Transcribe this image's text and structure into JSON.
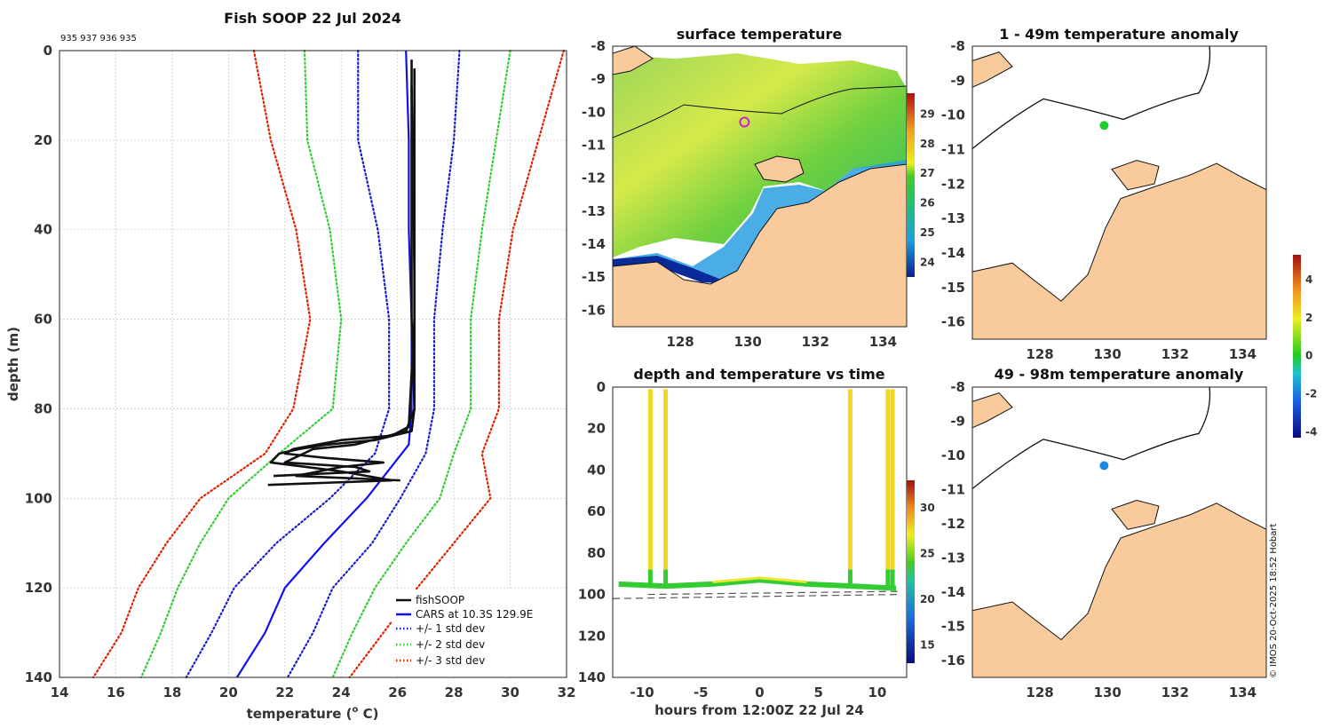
{
  "colors": {
    "land": "#f9cb9c",
    "profile": "#111111",
    "cars": "#1010ee",
    "std1": "#1a1acc",
    "std2": "#33cc33",
    "std3": "#dd2200"
  },
  "credit": "© IMOS 20-Oct-2025 18:52 Hobart",
  "chart_data": [
    {
      "id": "profile",
      "type": "line",
      "title": "Fish SOOP 22 Jul 2024",
      "subtitle": "935 937 936 935",
      "xlabel": "temperature (",
      "xlabel_sup": "o",
      "xlabel_tail": " C)",
      "ylabel": "depth (m)",
      "xlim": [
        14,
        32
      ],
      "ylim": [
        0,
        140
      ],
      "xticks": [
        "14",
        "16",
        "18",
        "20",
        "22",
        "24",
        "26",
        "28",
        "30",
        "32"
      ],
      "yticks": [
        "0",
        "20",
        "40",
        "60",
        "80",
        "100",
        "120",
        "140"
      ],
      "legend_position": "bottom-right",
      "legend": [
        "fishSOOP",
        "CARS at 10.3S 129.9E",
        "+/- 1 std dev",
        "+/- 2 std dev",
        "+/- 3 std dev"
      ],
      "series": [
        {
          "name": "CARS at 10.3S 129.9E",
          "style": "solid",
          "depth": [
            0,
            20,
            40,
            60,
            80,
            88,
            100,
            110,
            120,
            130,
            140
          ],
          "temp": [
            26.3,
            26.4,
            26.4,
            26.5,
            26.5,
            26.4,
            24.9,
            23.4,
            22.0,
            21.3,
            20.3
          ]
        },
        {
          "name": "+1 std dev",
          "style": "dotted",
          "depth": [
            0,
            20,
            40,
            60,
            80,
            90,
            100,
            110,
            120,
            130,
            140
          ],
          "temp": [
            28.2,
            28.0,
            27.6,
            27.3,
            27.3,
            27.0,
            26.1,
            25.1,
            23.7,
            23.0,
            22.1
          ]
        },
        {
          "name": "-1 std dev",
          "style": "dotted",
          "depth": [
            0,
            20,
            40,
            60,
            80,
            90,
            100,
            110,
            120,
            130,
            140
          ],
          "temp": [
            24.6,
            24.6,
            25.3,
            25.7,
            25.7,
            25.2,
            23.6,
            21.7,
            20.2,
            19.4,
            18.5
          ]
        },
        {
          "name": "+2 std dev",
          "style": "dotted",
          "depth": [
            0,
            20,
            40,
            60,
            80,
            90,
            100,
            110,
            120,
            130,
            140
          ],
          "temp": [
            30.0,
            29.5,
            29.0,
            28.6,
            28.6,
            28.0,
            27.5,
            26.3,
            25.2,
            24.4,
            23.7
          ]
        },
        {
          "name": "-2 std dev",
          "style": "dotted",
          "depth": [
            0,
            20,
            40,
            60,
            80,
            90,
            100,
            110,
            120,
            130,
            140
          ],
          "temp": [
            22.7,
            22.8,
            23.6,
            24.0,
            23.7,
            21.8,
            20.0,
            19.0,
            18.2,
            17.6,
            16.9
          ]
        },
        {
          "name": "+3 std dev",
          "style": "dotted",
          "depth": [
            0,
            20,
            40,
            60,
            80,
            90,
            100,
            110,
            120,
            130,
            140
          ],
          "temp": [
            31.9,
            31.0,
            30.1,
            29.6,
            29.6,
            29.0,
            29.3,
            28.0,
            26.7,
            25.5,
            24.3
          ]
        },
        {
          "name": "-3 std dev",
          "style": "dotted",
          "depth": [
            0,
            20,
            40,
            60,
            80,
            90,
            100,
            110,
            120,
            130,
            140
          ],
          "temp": [
            20.9,
            21.5,
            22.4,
            22.9,
            22.3,
            21.3,
            19.0,
            17.8,
            16.8,
            16.2,
            15.2
          ]
        },
        {
          "name": "fishSOOP",
          "style": "solid",
          "depth": [
            2,
            20,
            40,
            60,
            80,
            85,
            87,
            88,
            89,
            90,
            92,
            94,
            96,
            97
          ],
          "temp": [
            26.5,
            26.5,
            26.5,
            26.5,
            26.6,
            26.5,
            25.2,
            23.5,
            22.5,
            21.8,
            21.5,
            24.0,
            25.8,
            21.4
          ]
        },
        {
          "name": "fishSOOP",
          "style": "solid",
          "depth": [
            4,
            30,
            60,
            84,
            86,
            87,
            89,
            90,
            91,
            92,
            93,
            95,
            96
          ],
          "temp": [
            26.6,
            26.6,
            26.6,
            26.4,
            25.8,
            24.0,
            22.3,
            22.0,
            23.5,
            25.5,
            24.0,
            22.4,
            26.1
          ]
        },
        {
          "name": "fishSOOP",
          "style": "solid",
          "depth": [
            8,
            50,
            80,
            85,
            88,
            89,
            92,
            93,
            94,
            95
          ],
          "temp": [
            26.5,
            26.6,
            26.6,
            26.3,
            24.5,
            23.0,
            22.0,
            24.5,
            25.0,
            21.6
          ]
        }
      ]
    },
    {
      "id": "sst",
      "type": "heatmap",
      "title": "surface temperature",
      "xlim": [
        126,
        134.7
      ],
      "ylim": [
        -16.5,
        -8
      ],
      "xticks": [
        "128",
        "130",
        "132",
        "134"
      ],
      "yticks": [
        "-8",
        "-9",
        "-10",
        "-11",
        "-12",
        "-13",
        "-14",
        "-15",
        "-16"
      ],
      "colorbar": {
        "range": [
          23.5,
          29.7
        ],
        "ticks": [
          "24",
          "25",
          "26",
          "27",
          "28",
          "29"
        ]
      },
      "marker": {
        "lon": 129.9,
        "lat": -10.3
      }
    },
    {
      "id": "depth_time",
      "type": "scatter",
      "title": "depth and temperature vs time",
      "xlabel": "hours from 12:00Z 22 Jul 24",
      "xlim": [
        -12.5,
        12.5
      ],
      "ylim": [
        0,
        140
      ],
      "xticks": [
        "-10",
        "-5",
        "0",
        "5",
        "10"
      ],
      "yticks": [
        "0",
        "20",
        "40",
        "60",
        "80",
        "100",
        "120",
        "140"
      ],
      "colorbar": {
        "range": [
          13,
          33
        ],
        "ticks": [
          "15",
          "20",
          "25",
          "30"
        ]
      },
      "bottom_lines": [
        {
          "x": [
            -12.5,
            12.0
          ],
          "y": [
            102,
            100
          ]
        },
        {
          "x": [
            -9.5,
            12.0
          ],
          "y": [
            100,
            98.5
          ]
        }
      ],
      "casts": [
        {
          "hour": -9.3
        },
        {
          "hour": -8.0
        },
        {
          "hour": 7.7
        },
        {
          "hour": 10.9
        },
        {
          "hour": 11.3
        }
      ],
      "bottom_track": [
        {
          "hour": -12.0,
          "depth": 95
        },
        {
          "hour": -8,
          "depth": 96
        },
        {
          "hour": -4,
          "depth": 95
        },
        {
          "hour": 0,
          "depth": 93
        },
        {
          "hour": 4,
          "depth": 95
        },
        {
          "hour": 8,
          "depth": 96
        },
        {
          "hour": 11.6,
          "depth": 97
        }
      ]
    },
    {
      "id": "anom_1_49",
      "type": "scatter",
      "title": "1 - 49m temperature anomaly",
      "xlim": [
        126,
        134.7
      ],
      "ylim": [
        -16.5,
        -8
      ],
      "xticks": [
        "128",
        "130",
        "132",
        "134"
      ],
      "yticks": [
        "-8",
        "-9",
        "-10",
        "-11",
        "-12",
        "-13",
        "-14",
        "-15",
        "-16"
      ],
      "points": [
        {
          "lon": 129.9,
          "lat": -10.3,
          "anomaly": 0.2
        }
      ]
    },
    {
      "id": "anom_49_98",
      "type": "scatter",
      "title": "49 - 98m temperature anomaly",
      "xlim": [
        126,
        134.7
      ],
      "ylim": [
        -16.5,
        -8
      ],
      "xticks": [
        "128",
        "130",
        "132",
        "134"
      ],
      "yticks": [
        "-8",
        "-9",
        "-10",
        "-11",
        "-12",
        "-13",
        "-14",
        "-15",
        "-16"
      ],
      "points": [
        {
          "lon": 129.9,
          "lat": -10.3,
          "anomaly": -1.5
        }
      ],
      "colorbar": {
        "range": [
          -4.3,
          5.3
        ],
        "ticks": [
          "-4",
          "-2",
          "0",
          "2",
          "4"
        ]
      }
    }
  ]
}
